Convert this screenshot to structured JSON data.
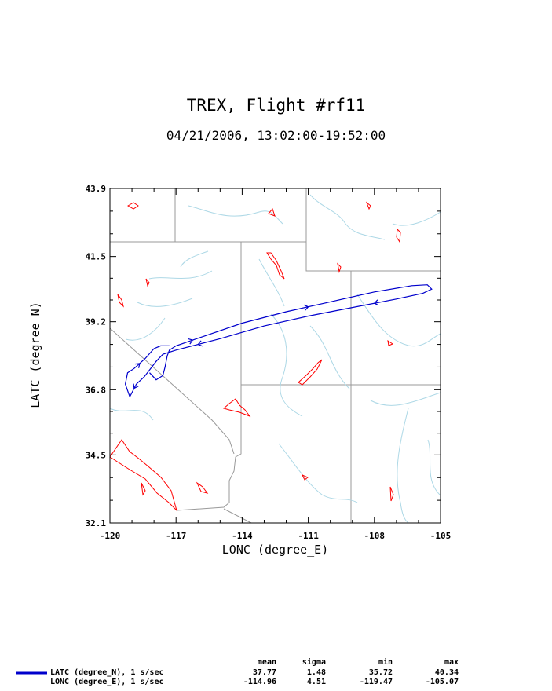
{
  "chart_data": {
    "type": "line",
    "title": "TREX, Flight #rf11",
    "subtitle": "04/21/2006, 13:02:00-19:52:00",
    "xlabel": "LONC (degree_E)",
    "ylabel": "LATC (degree_N)",
    "xlim": [
      -120,
      -105
    ],
    "ylim": [
      32.1,
      43.9
    ],
    "x_ticks": [
      -120,
      -117,
      -114,
      -111,
      -108,
      -105
    ],
    "y_ticks": [
      32.1,
      34.5,
      36.8,
      39.2,
      41.5,
      43.9
    ],
    "series": [
      {
        "name": "LATC (degree_N), 1 s/sec",
        "color": "#0000cc",
        "points": [
          [
            -118.2,
            37.4
          ],
          [
            -117.9,
            37.15
          ],
          [
            -117.6,
            37.3
          ],
          [
            -117.5,
            37.6
          ],
          [
            -117.4,
            38.0
          ],
          [
            -117.3,
            38.2
          ],
          [
            -117.0,
            38.35
          ],
          [
            -115.5,
            38.75
          ],
          [
            -114.0,
            39.15
          ],
          [
            -112.0,
            39.55
          ],
          [
            -110.0,
            39.9
          ],
          [
            -108.0,
            40.25
          ],
          [
            -106.3,
            40.47
          ],
          [
            -105.6,
            40.5
          ],
          [
            -105.4,
            40.35
          ],
          [
            -105.8,
            40.2
          ],
          [
            -107.0,
            40.0
          ],
          [
            -109.0,
            39.7
          ],
          [
            -111.0,
            39.4
          ],
          [
            -113.0,
            39.05
          ],
          [
            -115.0,
            38.6
          ],
          [
            -117.0,
            38.2
          ],
          [
            -117.6,
            38.05
          ],
          [
            -117.9,
            37.8
          ],
          [
            -118.2,
            37.5
          ],
          [
            -118.45,
            37.25
          ],
          [
            -118.8,
            37.0
          ],
          [
            -119.0,
            36.7
          ],
          [
            -119.1,
            36.55
          ],
          [
            -119.3,
            37.0
          ],
          [
            -119.2,
            37.4
          ],
          [
            -118.9,
            37.55
          ],
          [
            -118.4,
            37.9
          ],
          [
            -118.0,
            38.25
          ],
          [
            -117.7,
            38.35
          ],
          [
            -117.3,
            38.35
          ]
        ]
      },
      {
        "name": "LONC (degree_E), 1 s/sec",
        "color": "#0000cc",
        "points": []
      }
    ],
    "grid": false,
    "legend": "bottom-left"
  },
  "stats": {
    "headers": [
      "mean",
      "sigma",
      "min",
      "max"
    ],
    "rows": [
      {
        "label": "LATC (degree_N), 1 s/sec",
        "values": [
          "37.77",
          "1.48",
          "35.72",
          "40.34"
        ]
      },
      {
        "label": "LONC (degree_E), 1 s/sec",
        "values": [
          "-114.96",
          "4.51",
          "-119.47",
          "-105.07"
        ]
      }
    ]
  }
}
